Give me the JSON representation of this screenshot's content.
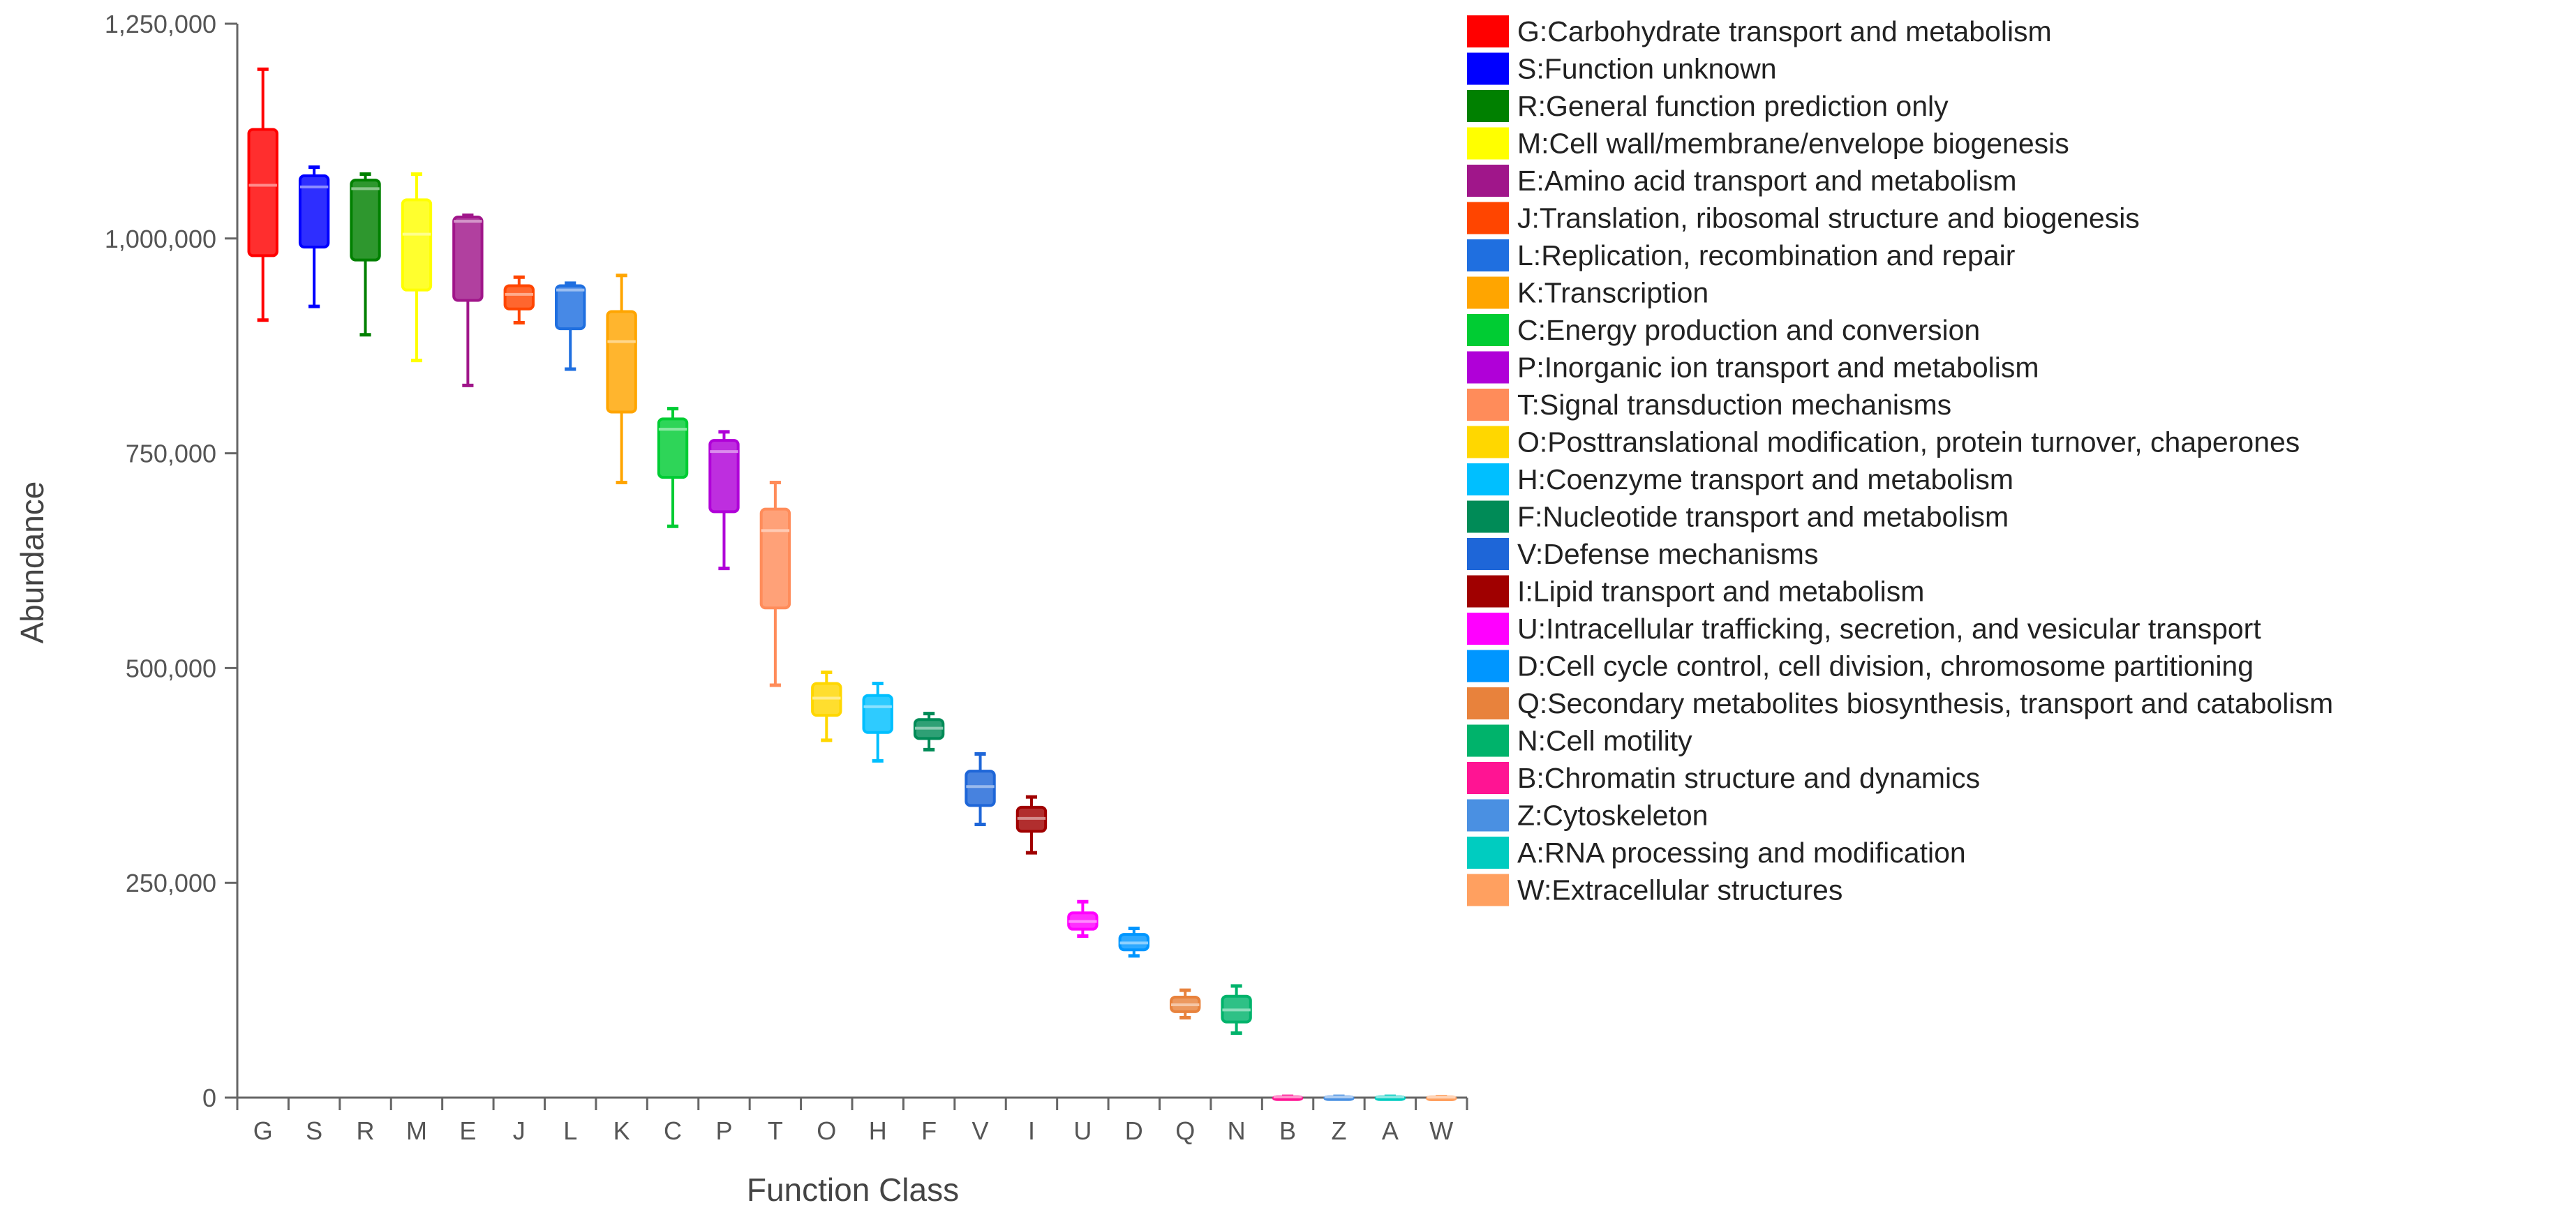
{
  "chart_data": {
    "type": "boxplot",
    "xlabel": "Function Class",
    "ylabel": "Abundance",
    "ylim": [
      0,
      1250000
    ],
    "yticks": [
      0,
      250000,
      500000,
      750000,
      1000000,
      1250000
    ],
    "ytick_labels": [
      "0",
      "250,000",
      "500,000",
      "750,000",
      "1,000,000",
      "1,250,000"
    ],
    "legend_position": "right",
    "categories": [
      {
        "code": "G",
        "legend": "G:Carbohydrate transport and metabolism",
        "color": "#ff0000",
        "min": 905000,
        "q1": 980000,
        "median": 1062000,
        "q3": 1127000,
        "max": 1197000
      },
      {
        "code": "S",
        "legend": "S:Function unknown",
        "color": "#0000ff",
        "min": 921000,
        "q1": 990000,
        "median": 1060000,
        "q3": 1073000,
        "max": 1083000
      },
      {
        "code": "R",
        "legend": "R:General function prediction only",
        "color": "#008000",
        "min": 888000,
        "q1": 975000,
        "median": 1058000,
        "q3": 1068000,
        "max": 1075000
      },
      {
        "code": "M",
        "legend": "M:Cell wall/membrane/envelope biogenesis",
        "color": "#ffff00",
        "min": 858000,
        "q1": 940000,
        "median": 1005000,
        "q3": 1045000,
        "max": 1075000
      },
      {
        "code": "E",
        "legend": "E:Amino acid transport and metabolism",
        "color": "#a0168a",
        "min": 829000,
        "q1": 928000,
        "median": 1020000,
        "q3": 1025000,
        "max": 1027000
      },
      {
        "code": "J",
        "legend": "J:Translation, ribosomal structure and biogenesis",
        "color": "#ff4500",
        "min": 902000,
        "q1": 918000,
        "median": 935000,
        "q3": 945000,
        "max": 955000
      },
      {
        "code": "L",
        "legend": "L:Replication, recombination and repair",
        "color": "#1f6fe0",
        "min": 848000,
        "q1": 895000,
        "median": 940000,
        "q3": 945000,
        "max": 948000
      },
      {
        "code": "K",
        "legend": "K:Transcription",
        "color": "#ffa500",
        "min": 716000,
        "q1": 798000,
        "median": 880000,
        "q3": 915000,
        "max": 957000
      },
      {
        "code": "C",
        "legend": "C:Energy production and conversion",
        "color": "#00cc33",
        "min": 665000,
        "q1": 722000,
        "median": 778000,
        "q3": 790000,
        "max": 802000
      },
      {
        "code": "P",
        "legend": "P:Inorganic ion transport and metabolism",
        "color": "#b000d8",
        "min": 616000,
        "q1": 682000,
        "median": 752000,
        "q3": 765000,
        "max": 775000
      },
      {
        "code": "T",
        "legend": "T:Signal transduction mechanisms",
        "color": "#ff8c5a",
        "min": 480000,
        "q1": 570000,
        "median": 660000,
        "q3": 685000,
        "max": 716000
      },
      {
        "code": "O",
        "legend": "O:Posttranslational modification, protein turnover, chaperones",
        "color": "#ffd700",
        "min": 416000,
        "q1": 445000,
        "median": 465000,
        "q3": 482000,
        "max": 495000
      },
      {
        "code": "H",
        "legend": "H:Coenzyme transport and metabolism",
        "color": "#00bfff",
        "min": 392000,
        "q1": 425000,
        "median": 455000,
        "q3": 468000,
        "max": 482000
      },
      {
        "code": "F",
        "legend": "F:Nucleotide transport and metabolism",
        "color": "#008b57",
        "min": 405000,
        "q1": 418000,
        "median": 430000,
        "q3": 440000,
        "max": 447000
      },
      {
        "code": "V",
        "legend": "V:Defense mechanisms",
        "color": "#1e66d8",
        "min": 318000,
        "q1": 340000,
        "median": 362000,
        "q3": 380000,
        "max": 400000
      },
      {
        "code": "I",
        "legend": "I:Lipid transport and metabolism",
        "color": "#a00000",
        "min": 285000,
        "q1": 310000,
        "median": 325000,
        "q3": 338000,
        "max": 350000
      },
      {
        "code": "U",
        "legend": "U:Intracellular trafficking, secretion, and vesicular transport",
        "color": "#ff00ff",
        "min": 188000,
        "q1": 196000,
        "median": 205000,
        "q3": 215000,
        "max": 228000
      },
      {
        "code": "D",
        "legend": "D:Cell cycle control, cell division, chromosome partitioning",
        "color": "#0096ff",
        "min": 165000,
        "q1": 172000,
        "median": 180000,
        "q3": 190000,
        "max": 197000
      },
      {
        "code": "Q",
        "legend": "Q:Secondary metabolites biosynthesis, transport and catabolism",
        "color": "#e8823c",
        "min": 93000,
        "q1": 100000,
        "median": 108000,
        "q3": 117000,
        "max": 125000
      },
      {
        "code": "N",
        "legend": "N:Cell motility",
        "color": "#00b36b",
        "min": 75000,
        "q1": 88000,
        "median": 102000,
        "q3": 118000,
        "max": 130000
      },
      {
        "code": "B",
        "legend": "B:Chromatin structure and dynamics",
        "color": "#ff1493",
        "min": 200,
        "q1": 400,
        "median": 700,
        "q3": 1000,
        "max": 1500
      },
      {
        "code": "Z",
        "legend": "Z:Cytoskeleton",
        "color": "#4a90e2",
        "min": 200,
        "q1": 400,
        "median": 700,
        "q3": 1000,
        "max": 1500
      },
      {
        "code": "A",
        "legend": "A:RNA processing and modification",
        "color": "#00ccc0",
        "min": 200,
        "q1": 400,
        "median": 700,
        "q3": 1000,
        "max": 1500
      },
      {
        "code": "W",
        "legend": "W:Extracellular structures",
        "color": "#ffa060",
        "min": 100,
        "q1": 300,
        "median": 500,
        "q3": 800,
        "max": 1200
      }
    ]
  }
}
